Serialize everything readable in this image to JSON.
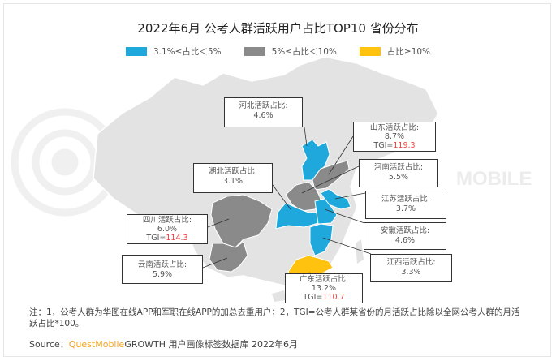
{
  "title": "2022年6月 公考人群活跃用户占比TOP10 省份分布",
  "legend": [
    {
      "label": "3.1%≤占比＜5%",
      "color": "#1ea8dc"
    },
    {
      "label": "5%≤占比＜10%",
      "color": "#8a8a8a"
    },
    {
      "label": "占比≥10%",
      "color": "#ffc20e"
    }
  ],
  "provinces": {
    "hebei": {
      "label": "河北活跃占比:",
      "value": "4.6%",
      "category": "3.1%≤占比＜5%"
    },
    "shandong": {
      "label": "山东活跃占比:",
      "value": "8.7%",
      "tgi_prefix": "TGI=",
      "tgi": "119.3",
      "category": "5%≤占比＜10%"
    },
    "henan": {
      "label": "河南活跃占比:",
      "value": "5.5%",
      "category": "5%≤占比＜10%"
    },
    "hubei": {
      "label": "湖北活跃占比:",
      "value": "3.1%",
      "category": "3.1%≤占比＜5%"
    },
    "jiangsu": {
      "label": "江苏活跃占比:",
      "value": "3.7%",
      "category": "3.1%≤占比＜5%"
    },
    "anhui": {
      "label": "安徽活跃占比:",
      "value": "4.6%",
      "category": "3.1%≤占比＜5%"
    },
    "jiangxi": {
      "label": "江西活跃占比:",
      "value": "3.3%",
      "category": "3.1%≤占比＜5%"
    },
    "sichuan": {
      "label": "四川活跃占比:",
      "value": "6.0%",
      "tgi_prefix": "TGI=",
      "tgi": "114.3",
      "category": "5%≤占比＜10%"
    },
    "yunnan": {
      "label": "云南活跃占比:",
      "value": "5.9%",
      "category": "5%≤占比＜10%"
    },
    "guangdong": {
      "label": "广东活跃占比:",
      "value": "13.2%",
      "tgi_prefix": "TGI=",
      "tgi": "110.7",
      "category": "占比≥10%"
    }
  },
  "note": "注：1，公考人群为华图在线APP和军职在线APP的加总去重用户；2，TGI=公考人群某省份的月活跃占比除以全网公考人群的月活跃占比*100。",
  "source": {
    "prefix": "Source：",
    "brand": "QuestMobile",
    "text": "GROWTH 用户画像标签数据库 2022年6月"
  },
  "watermark": "MOBILE"
}
